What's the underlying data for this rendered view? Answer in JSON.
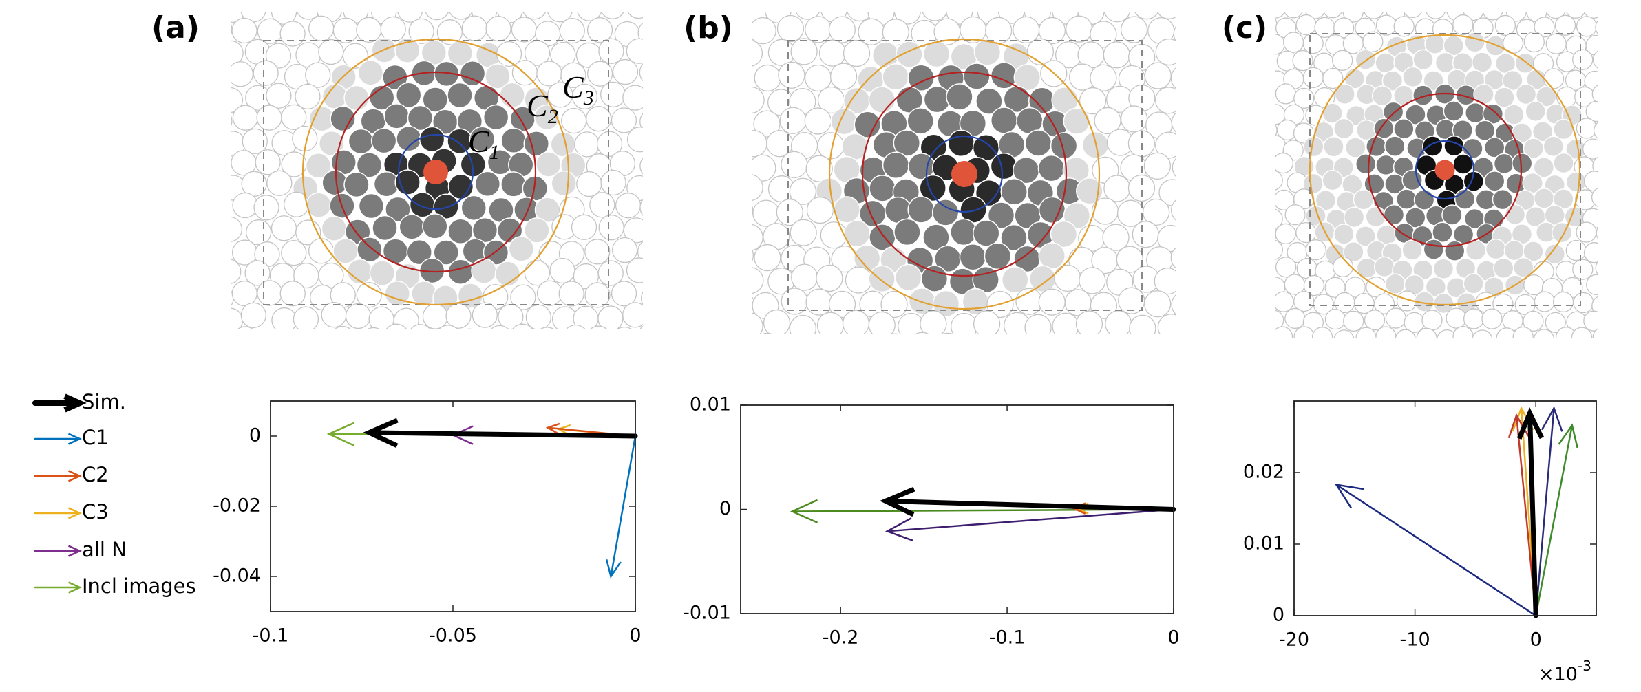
{
  "panel_labels": [
    "(a)",
    "(b)",
    "(c)"
  ],
  "shell_labels": [
    {
      "letter": "C",
      "sub": "1"
    },
    {
      "letter": "C",
      "sub": "2"
    },
    {
      "letter": "C",
      "sub": "3"
    }
  ],
  "chart_data": [
    {
      "type": "quiver",
      "xlim": [
        -0.1,
        0
      ],
      "xticks": [
        -0.1,
        -0.05,
        0
      ],
      "ylim": [
        -0.05,
        0.01
      ],
      "yticks": [
        -0.04,
        -0.02,
        0
      ],
      "series": [
        {
          "name": "Sim.",
          "color": "#000000",
          "u": [
            -0.073
          ],
          "v": [
            0.001
          ]
        },
        {
          "name": "C1",
          "color": "#0072bd",
          "u": [
            -0.0067
          ],
          "v": [
            -0.04
          ]
        },
        {
          "name": "C2",
          "color": "#d95319",
          "u": [
            -0.024
          ],
          "v": [
            0.0024
          ]
        },
        {
          "name": "C3",
          "color": "#edb120",
          "u": [
            -0.021
          ],
          "v": [
            0.002
          ]
        },
        {
          "name": "all N",
          "color": "#7e2f8e",
          "u": [
            -0.05
          ],
          "v": [
            0.0003
          ]
        },
        {
          "name": "Incl images",
          "color": "#77ac30",
          "u": [
            -0.084
          ],
          "v": [
            0.0006
          ]
        }
      ]
    },
    {
      "type": "quiver",
      "xlim": [
        -0.26,
        0
      ],
      "xticks": [
        -0.2,
        -0.1,
        0
      ],
      "ylim": [
        -0.01,
        0.01
      ],
      "yticks": [
        -0.01,
        0,
        0.01
      ],
      "series": [
        {
          "color": "#000000",
          "u": [
            -0.173
          ],
          "v": [
            0.0008
          ]
        },
        {
          "color": "#d95319",
          "u": [
            -0.06
          ],
          "v": [
            0.0001
          ]
        },
        {
          "color": "#edb120",
          "u": [
            -0.058
          ],
          "v": [
            0.0001
          ]
        },
        {
          "color": "#3e1e6e",
          "u": [
            -0.172
          ],
          "v": [
            -0.0021
          ]
        },
        {
          "color": "#4a8a1e",
          "u": [
            -0.229
          ],
          "v": [
            -0.0002
          ]
        }
      ]
    },
    {
      "type": "quiver",
      "xlim": [
        -20,
        5
      ],
      "xticks": [
        -20,
        -10,
        0
      ],
      "ylim": [
        0,
        0.03
      ],
      "yticks": [
        0,
        0.01,
        0.02
      ],
      "x_exponent_label": {
        "base": "×10",
        "exponent": "-3"
      },
      "series": [
        {
          "color": "#000000",
          "u": [
            -0.5
          ],
          "v": [
            0.0283
          ]
        },
        {
          "color": "#1b2a80",
          "u": [
            -16.5
          ],
          "v": [
            0.0183
          ]
        },
        {
          "color": "#c0392b",
          "u": [
            -1.6
          ],
          "v": [
            0.028
          ]
        },
        {
          "color": "#edb120",
          "u": [
            -1.2
          ],
          "v": [
            0.029
          ]
        },
        {
          "color": "#2a2a7a",
          "u": [
            1.5
          ],
          "v": [
            0.029
          ]
        },
        {
          "color": "#3d8b2a",
          "u": [
            3.0
          ],
          "v": [
            0.0266
          ]
        }
      ]
    }
  ]
}
